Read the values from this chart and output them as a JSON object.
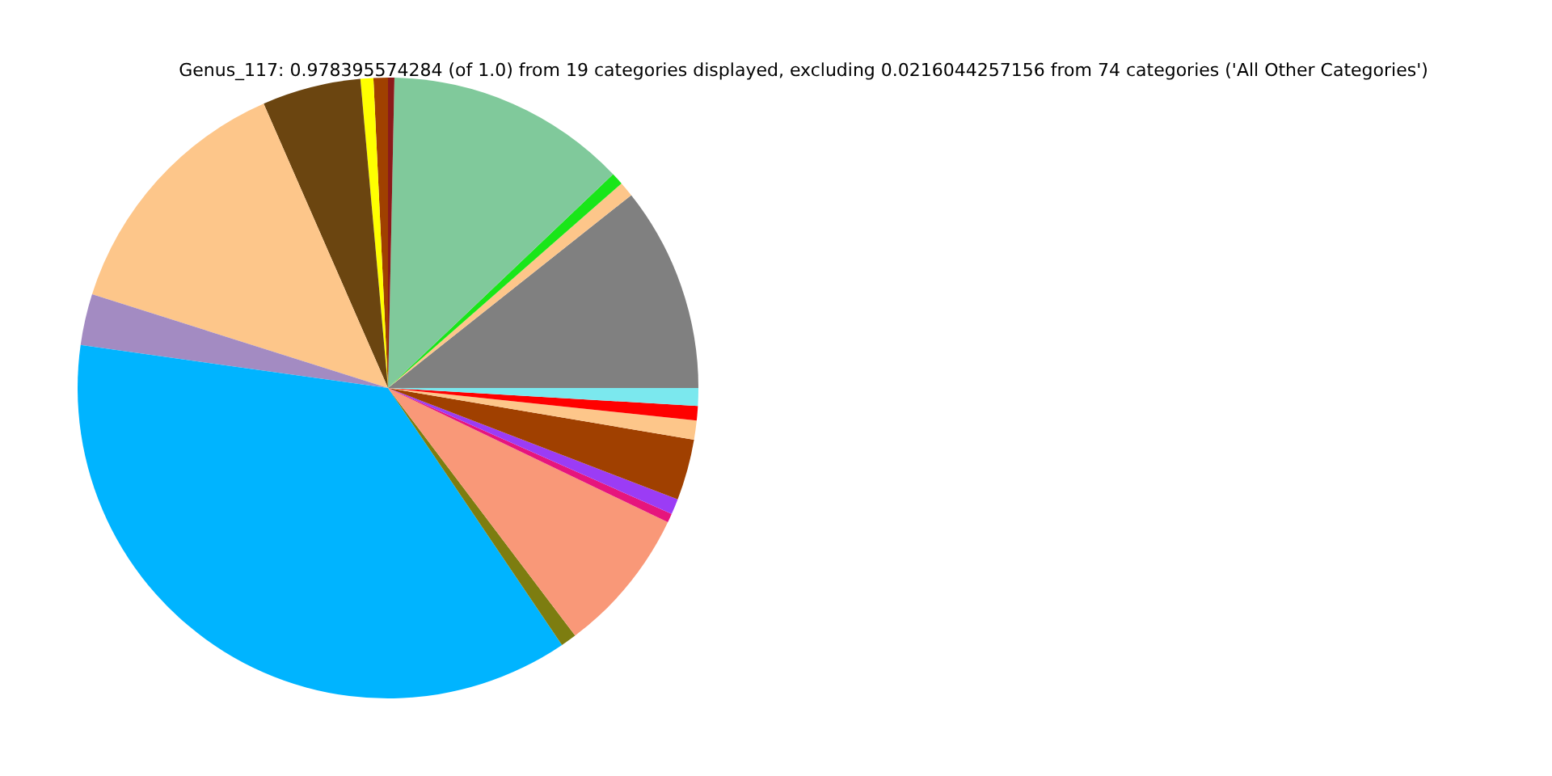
{
  "chart_data": {
    "type": "pie",
    "title": "Genus_117: 0.978395574284 (of 1.0) from 19 categories displayed, excluding 0.0216044257156 from 74 categories ('All Other Categories')",
    "categories": [
      null,
      null,
      null,
      null,
      null,
      null,
      null,
      null,
      null,
      null,
      null,
      null,
      null,
      null,
      null,
      null,
      null,
      null,
      null
    ],
    "values": [
      10.67,
      0.78,
      0.64,
      12.58,
      0.33,
      0.75,
      0.67,
      5.14,
      13.56,
      2.67,
      36.68,
      0.83,
      7.58,
      0.47,
      0.81,
      3.17,
      1.0,
      0.75,
      0.92
    ],
    "colors": [
      "#808080",
      "#fdc68a",
      "#19e619",
      "#80c99b",
      "#8b1a1a",
      "#a04000",
      "#ffff00",
      "#6b4510",
      "#fdc68a",
      "#a38bc2",
      "#00b4ff",
      "#7d7d10",
      "#f99878",
      "#e6157d",
      "#9b3cf5",
      "#a04000",
      "#fdc68a",
      "#ff0000",
      "#7be8ee"
    ]
  }
}
